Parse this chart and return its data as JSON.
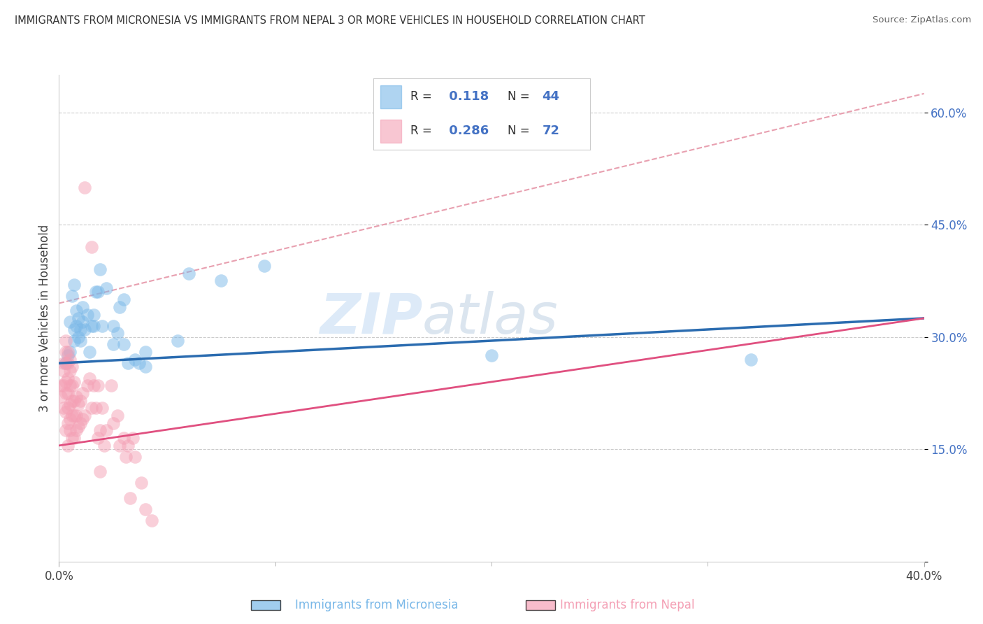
{
  "title": "IMMIGRANTS FROM MICRONESIA VS IMMIGRANTS FROM NEPAL 3 OR MORE VEHICLES IN HOUSEHOLD CORRELATION CHART",
  "source": "Source: ZipAtlas.com",
  "ylabel_label": "3 or more Vehicles in Household",
  "xmin": 0.0,
  "xmax": 0.4,
  "ymin": 0.0,
  "ymax": 0.65,
  "yticks": [
    0.0,
    0.15,
    0.3,
    0.45,
    0.6
  ],
  "ytick_labels": [
    "",
    "15.0%",
    "30.0%",
    "45.0%",
    "60.0%"
  ],
  "watermark_zip": "ZIP",
  "watermark_atlas": "atlas",
  "legend_micronesia_R": "0.118",
  "legend_micronesia_N": "44",
  "legend_nepal_R": "0.286",
  "legend_nepal_N": "72",
  "color_micronesia": "#7ab8e8",
  "color_nepal": "#f4a0b5",
  "trendline_micronesia_color": "#2b6cb0",
  "trendline_nepal_color": "#e05080",
  "trendline_dashed_color": "#e8a0b0",
  "trendline_mic_x0": 0.0,
  "trendline_mic_y0": 0.265,
  "trendline_mic_x1": 0.4,
  "trendline_mic_y1": 0.325,
  "trendline_nep_x0": 0.0,
  "trendline_nep_y0": 0.155,
  "trendline_nep_x1": 0.4,
  "trendline_nep_y1": 0.325,
  "trendline_dash_x0": 0.0,
  "trendline_dash_y0": 0.345,
  "trendline_dash_x1": 0.4,
  "trendline_dash_y1": 0.625,
  "micronesia_points": [
    [
      0.003,
      0.265
    ],
    [
      0.004,
      0.275
    ],
    [
      0.005,
      0.32
    ],
    [
      0.005,
      0.28
    ],
    [
      0.006,
      0.355
    ],
    [
      0.007,
      0.295
    ],
    [
      0.007,
      0.31
    ],
    [
      0.007,
      0.37
    ],
    [
      0.008,
      0.315
    ],
    [
      0.008,
      0.335
    ],
    [
      0.009,
      0.3
    ],
    [
      0.009,
      0.325
    ],
    [
      0.01,
      0.295
    ],
    [
      0.01,
      0.31
    ],
    [
      0.011,
      0.32
    ],
    [
      0.011,
      0.34
    ],
    [
      0.012,
      0.31
    ],
    [
      0.013,
      0.33
    ],
    [
      0.014,
      0.28
    ],
    [
      0.015,
      0.315
    ],
    [
      0.016,
      0.315
    ],
    [
      0.016,
      0.33
    ],
    [
      0.017,
      0.36
    ],
    [
      0.018,
      0.36
    ],
    [
      0.019,
      0.39
    ],
    [
      0.02,
      0.315
    ],
    [
      0.022,
      0.365
    ],
    [
      0.025,
      0.29
    ],
    [
      0.025,
      0.315
    ],
    [
      0.027,
      0.305
    ],
    [
      0.028,
      0.34
    ],
    [
      0.03,
      0.35
    ],
    [
      0.03,
      0.29
    ],
    [
      0.032,
      0.265
    ],
    [
      0.035,
      0.27
    ],
    [
      0.037,
      0.265
    ],
    [
      0.04,
      0.26
    ],
    [
      0.04,
      0.28
    ],
    [
      0.055,
      0.295
    ],
    [
      0.06,
      0.385
    ],
    [
      0.075,
      0.375
    ],
    [
      0.095,
      0.395
    ],
    [
      0.2,
      0.275
    ],
    [
      0.32,
      0.27
    ]
  ],
  "nepal_points": [
    [
      0.001,
      0.22
    ],
    [
      0.001,
      0.235
    ],
    [
      0.002,
      0.205
    ],
    [
      0.002,
      0.235
    ],
    [
      0.002,
      0.255
    ],
    [
      0.002,
      0.265
    ],
    [
      0.003,
      0.175
    ],
    [
      0.003,
      0.2
    ],
    [
      0.003,
      0.225
    ],
    [
      0.003,
      0.24
    ],
    [
      0.003,
      0.265
    ],
    [
      0.003,
      0.28
    ],
    [
      0.003,
      0.295
    ],
    [
      0.004,
      0.155
    ],
    [
      0.004,
      0.185
    ],
    [
      0.004,
      0.205
    ],
    [
      0.004,
      0.225
    ],
    [
      0.004,
      0.245
    ],
    [
      0.004,
      0.265
    ],
    [
      0.004,
      0.28
    ],
    [
      0.005,
      0.175
    ],
    [
      0.005,
      0.19
    ],
    [
      0.005,
      0.21
    ],
    [
      0.005,
      0.235
    ],
    [
      0.005,
      0.255
    ],
    [
      0.005,
      0.27
    ],
    [
      0.006,
      0.165
    ],
    [
      0.006,
      0.195
    ],
    [
      0.006,
      0.215
    ],
    [
      0.006,
      0.235
    ],
    [
      0.006,
      0.26
    ],
    [
      0.007,
      0.165
    ],
    [
      0.007,
      0.195
    ],
    [
      0.007,
      0.215
    ],
    [
      0.007,
      0.24
    ],
    [
      0.008,
      0.175
    ],
    [
      0.008,
      0.195
    ],
    [
      0.008,
      0.22
    ],
    [
      0.009,
      0.18
    ],
    [
      0.009,
      0.21
    ],
    [
      0.01,
      0.185
    ],
    [
      0.01,
      0.215
    ],
    [
      0.011,
      0.19
    ],
    [
      0.011,
      0.225
    ],
    [
      0.012,
      0.5
    ],
    [
      0.012,
      0.195
    ],
    [
      0.013,
      0.235
    ],
    [
      0.014,
      0.245
    ],
    [
      0.015,
      0.42
    ],
    [
      0.015,
      0.205
    ],
    [
      0.016,
      0.235
    ],
    [
      0.017,
      0.205
    ],
    [
      0.018,
      0.165
    ],
    [
      0.018,
      0.235
    ],
    [
      0.019,
      0.12
    ],
    [
      0.019,
      0.175
    ],
    [
      0.02,
      0.205
    ],
    [
      0.021,
      0.155
    ],
    [
      0.022,
      0.175
    ],
    [
      0.024,
      0.235
    ],
    [
      0.025,
      0.185
    ],
    [
      0.027,
      0.195
    ],
    [
      0.028,
      0.155
    ],
    [
      0.03,
      0.165
    ],
    [
      0.031,
      0.14
    ],
    [
      0.032,
      0.155
    ],
    [
      0.033,
      0.085
    ],
    [
      0.034,
      0.165
    ],
    [
      0.035,
      0.14
    ],
    [
      0.038,
      0.105
    ],
    [
      0.04,
      0.07
    ],
    [
      0.043,
      0.055
    ]
  ],
  "background_color": "#ffffff",
  "grid_color": "#cccccc"
}
